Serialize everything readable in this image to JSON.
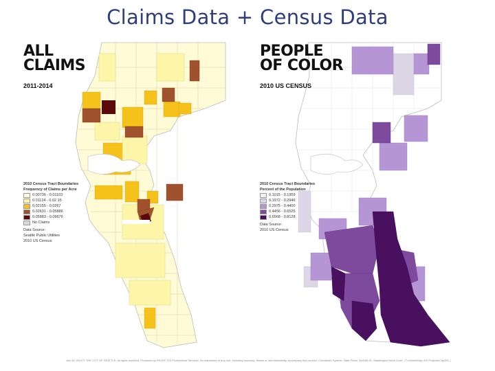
{
  "title": "Claims Data + Census Data",
  "maps": [
    {
      "heading_line1": "ALL",
      "heading_line2": "CLAIMS",
      "subheading": "2011-2014",
      "legend_title": "2010 Census Tract Boundaries",
      "legend_subtitle": "Frequency of Claims per Acre",
      "legend_items": [
        {
          "label": "0.00736 - 0.01103",
          "color": "#ffffe0"
        },
        {
          "label": "0.01124 - 0.02 15",
          "color": "#fdf5a8"
        },
        {
          "label": "0.02155 - 0.0267",
          "color": "#f5c21b"
        },
        {
          "label": "0.02631 - 0.05886",
          "color": "#a0522d"
        },
        {
          "label": "0.05883 - 0.09676",
          "color": "#5a0a0a"
        },
        {
          "label": "No Claims",
          "color": "#d8d8d8"
        }
      ],
      "source_label": "Data Source:",
      "source_lines": [
        "Seattle Public Utilities",
        "2010 US Census"
      ]
    },
    {
      "heading_line1": "PEOPLE",
      "heading_line2": "OF COLOR",
      "subheading": "2010 US CENSUS",
      "legend_title": "2010 Census Tract Boundaries",
      "legend_subtitle": "Percent of the Population",
      "legend_items": [
        {
          "label": "0.1015 - 0.1959",
          "color": "#f2f2f2"
        },
        {
          "label": "0.1972 - 0.2946",
          "color": "#dcd6e6"
        },
        {
          "label": "0.2975 - 0.4400",
          "color": "#b595d4"
        },
        {
          "label": "0.4456 - 0.6525",
          "color": "#7e4a9e"
        },
        {
          "label": "0.6568 - 0.8128",
          "color": "#4a1060"
        }
      ],
      "source_label": "Data Source:",
      "source_lines": [
        "2010 US Census"
      ]
    }
  ],
  "footer": "July 30, 2014 © THE CITY OF SEATTLE, all rights reserved. Produced by RSJI/IT GIS Professional Services. No warranties of any sort, including accuracy, fitness or merchantability, accompany this product. Coordinate System: State Plane, NAD83-91, Washington North Zone. | T:/vol/nfs/Map GIS Projects/CityGIS_2014_2014/20140718.mxd",
  "colors": {
    "title": "#2f3d7a",
    "land": "#ffffff",
    "water": "#ffffff",
    "border": "#c8c8c8"
  }
}
